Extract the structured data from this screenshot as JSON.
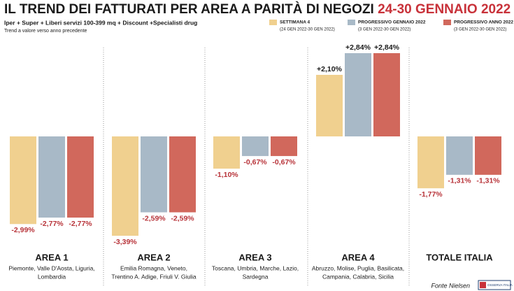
{
  "chart_data": {
    "type": "bar",
    "title": "IL TREND DEI FATTURATI PER AREA A PARITÀ DI NEGOZI",
    "title_highlight": "24-30 GENNAIO 2022",
    "subtitle": "Iper + Super + Liberi servizi 100-399 mq + Discount +Specialisti drug",
    "subtitle_note": "Trend a valore verso anno precedente",
    "categories": [
      "AREA 1",
      "AREA 2",
      "AREA 3",
      "AREA 4",
      "TOTALE ITALIA"
    ],
    "category_notes": [
      [
        "Piemonte, Valle D'Aosta, Liguria,",
        "Lombardia"
      ],
      [
        "Emilia Romagna, Veneto,",
        "Trentino A. Adige, Friuli V. Giulia"
      ],
      [
        "Toscana, Umbria, Marche, Lazio,",
        "Sardegna"
      ],
      [
        "Abruzzo, Molise, Puglia, Basilicata,",
        "Campania, Calabria, Sicilia"
      ],
      null
    ],
    "series": [
      {
        "name": "SETTIMANA 4",
        "note": "(24 GEN 2022-30 GEN 2022)",
        "color": "#f0d08f",
        "values": [
          -2.99,
          -3.39,
          -1.1,
          2.1,
          -1.77
        ],
        "value_labels": [
          "-2,99%",
          "-3,39%",
          "-1,10%",
          "+2,10%",
          "-1,77%"
        ]
      },
      {
        "name": "PROGRESSIVO GENNAIO 2022",
        "note": "(3 GEN 2022-30 GEN 2022)",
        "color": "#a8b9c7",
        "values": [
          -2.77,
          -2.59,
          -0.67,
          2.84,
          -1.31
        ],
        "value_labels": [
          "-2,77%",
          "-2,59%",
          "-0,67%",
          "+2,84%",
          "-1,31%"
        ]
      },
      {
        "name": "PROGRESSIVO ANNO 2022",
        "note": "(3 GEN 2022-30 GEN 2022)",
        "color": "#d1685c",
        "values": [
          -2.77,
          -2.59,
          -0.67,
          2.84,
          -1.31
        ],
        "value_labels": [
          "-2,77%",
          "-2,59%",
          "-0,67%",
          "+2,84%",
          "-1,31%"
        ]
      }
    ],
    "source": "Fonte Nielsen",
    "logo": "OSSERVA ITALIA"
  }
}
